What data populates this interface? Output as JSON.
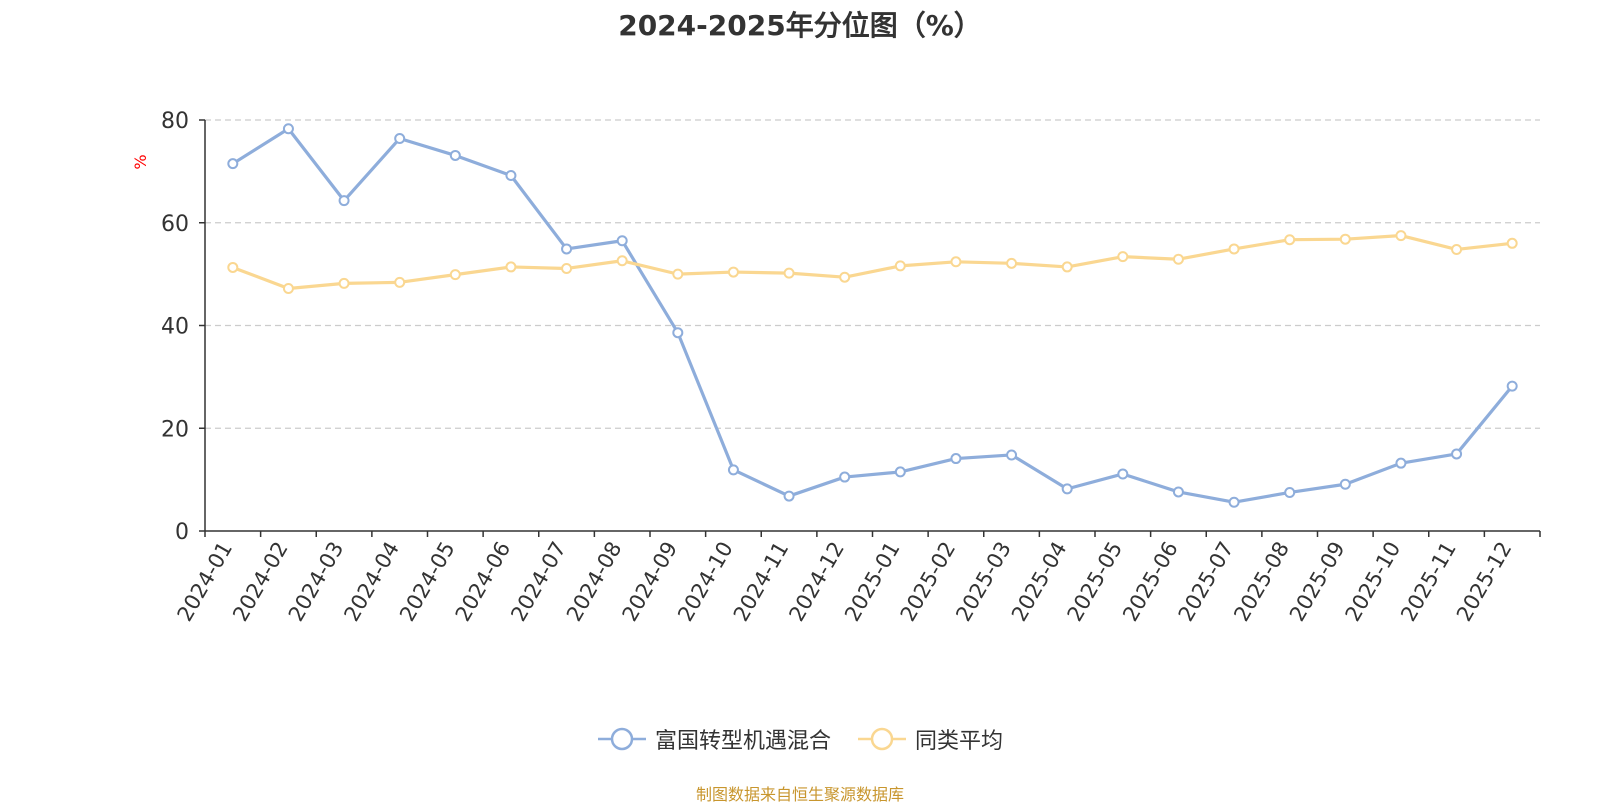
{
  "title": "2024-2025年分位图（%）",
  "source": "制图数据来自恒生聚源数据库",
  "chart_data": {
    "type": "line",
    "title": "2024-2025年分位图（%）",
    "ylabel": "%",
    "xlabel": "",
    "ylim": [
      0,
      80
    ],
    "yticks": [
      0,
      20,
      40,
      60,
      80
    ],
    "grid": true,
    "legend_position": "bottom",
    "categories": [
      "2024-01",
      "2024-02",
      "2024-03",
      "2024-04",
      "2024-05",
      "2024-06",
      "2024-07",
      "2024-08",
      "2024-09",
      "2024-10",
      "2024-11",
      "2024-12",
      "2025-01",
      "2025-02",
      "2025-03",
      "2025-04",
      "2025-05",
      "2025-06",
      "2025-07",
      "2025-08",
      "2025-09",
      "2025-10",
      "2025-11",
      "2025-12"
    ],
    "series": [
      {
        "name": "富国转型机遇混合",
        "color": "#8eaddb",
        "values": [
          71.5,
          78.3,
          64.3,
          76.4,
          73.1,
          69.2,
          54.9,
          56.5,
          38.6,
          11.9,
          6.8,
          10.5,
          11.5,
          14.1,
          14.8,
          8.2,
          11.1,
          7.6,
          5.6,
          7.5,
          9.1,
          13.2,
          15.0,
          28.2
        ]
      },
      {
        "name": "同类平均",
        "color": "#fad791",
        "values": [
          51.3,
          47.2,
          48.2,
          48.4,
          49.9,
          51.4,
          51.1,
          52.6,
          50.0,
          50.4,
          50.2,
          49.4,
          51.6,
          52.4,
          52.1,
          51.4,
          53.4,
          52.9,
          54.9,
          56.7,
          56.8,
          57.5,
          54.8,
          56.0
        ]
      }
    ]
  }
}
